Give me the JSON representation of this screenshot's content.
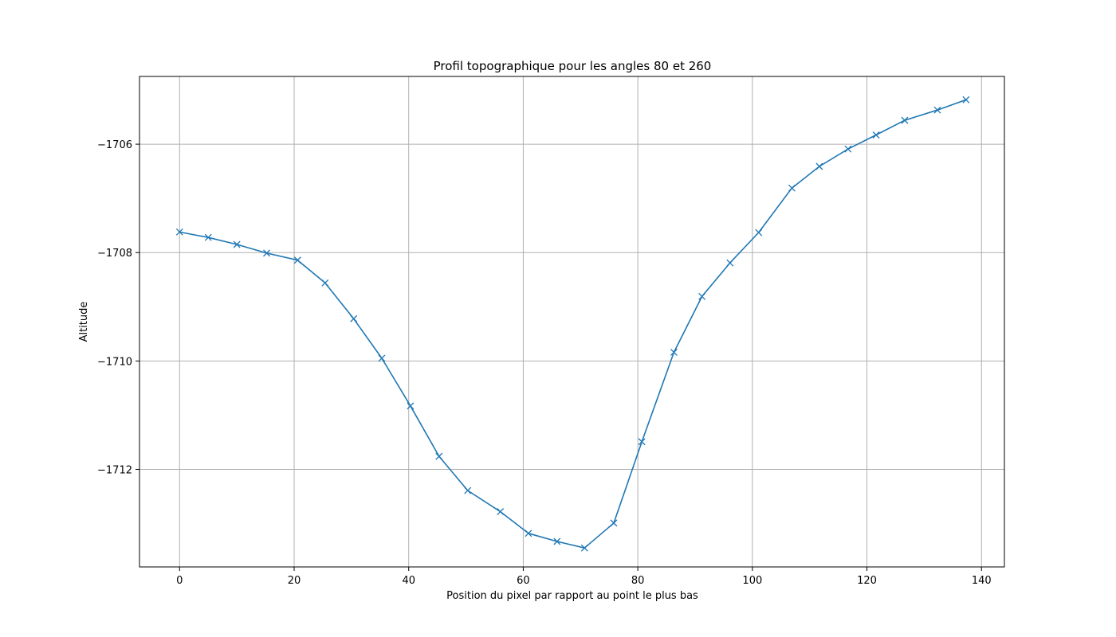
{
  "chart_data": {
    "type": "line",
    "title": "Profil topographique pour les angles 80 et 260",
    "xlabel": "Position du pixel par rapport au point le plus bas",
    "ylabel": "Altitude",
    "xlim": [
      -7,
      144
    ],
    "ylim": [
      -1713.8,
      -1704.75
    ],
    "xticks": [
      0,
      20,
      40,
      60,
      80,
      100,
      120,
      140
    ],
    "yticks": [
      -1712,
      -1710,
      -1708,
      -1706
    ],
    "xtick_labels": [
      "0",
      "20",
      "40",
      "60",
      "80",
      "100",
      "120",
      "140"
    ],
    "ytick_labels": [
      "−1712",
      "−1710",
      "−1708",
      "−1706"
    ],
    "grid": true,
    "marker": "x",
    "line_color": "#1f77b4",
    "series": [
      {
        "x": [
          0,
          5,
          10,
          15.2,
          20.6,
          25.4,
          30.4,
          35.3,
          40.3,
          45.3,
          50.3,
          56,
          60.9,
          65.9,
          70.7,
          75.8,
          80.7,
          86.3,
          91.2,
          96.1,
          101.1,
          106.9,
          111.7,
          116.7,
          121.6,
          126.6,
          132.3,
          137.3
        ],
        "y": [
          -1707.62,
          -1707.72,
          -1707.85,
          -1708.01,
          -1708.14,
          -1708.56,
          -1709.22,
          -1709.95,
          -1710.83,
          -1711.76,
          -1712.39,
          -1712.78,
          -1713.18,
          -1713.33,
          -1713.45,
          -1712.99,
          -1711.49,
          -1709.84,
          -1708.81,
          -1708.19,
          -1707.63,
          -1706.81,
          -1706.41,
          -1706.09,
          -1705.83,
          -1705.56,
          -1705.37,
          -1705.18
        ]
      }
    ]
  }
}
